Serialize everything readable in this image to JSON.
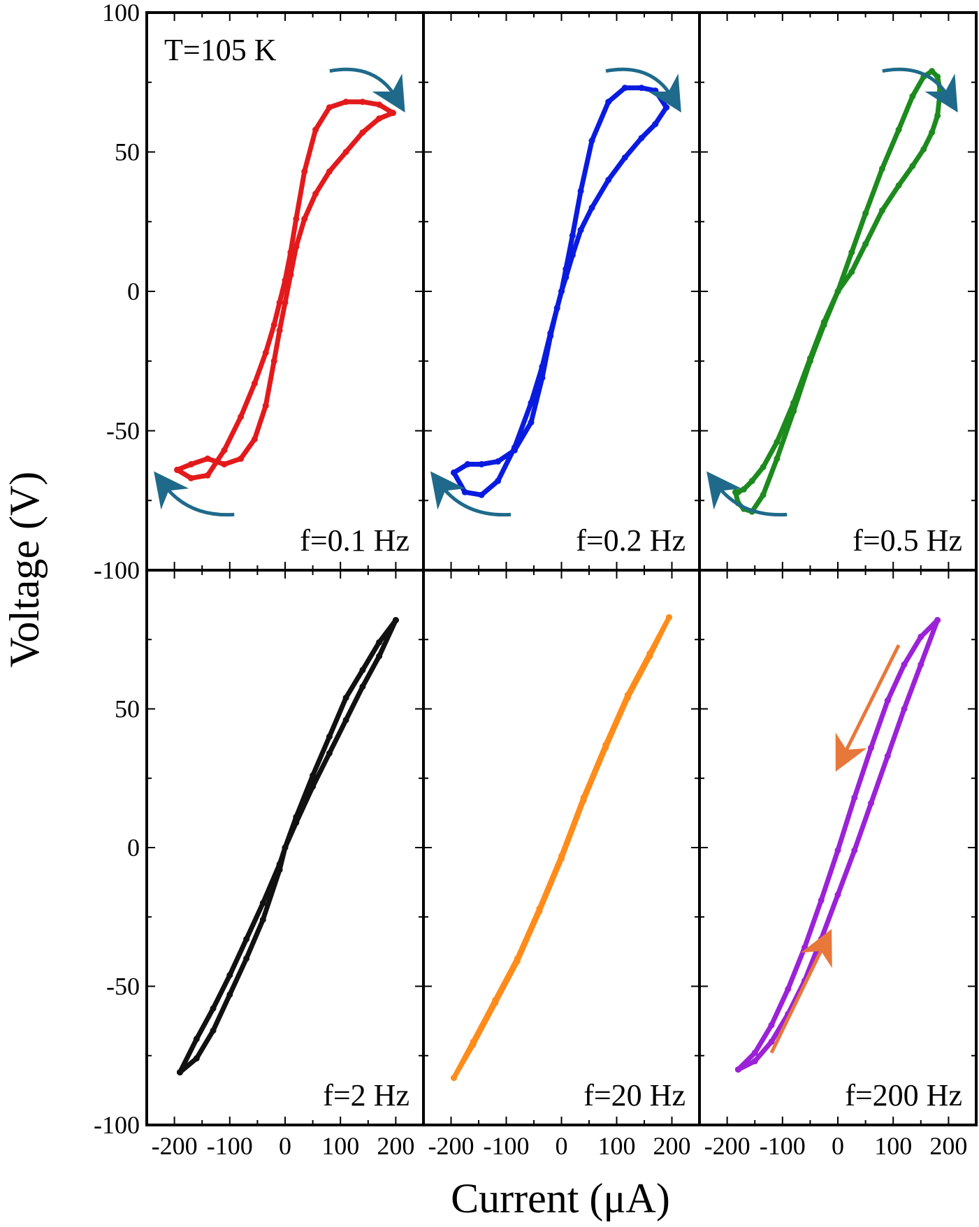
{
  "chart_data": {
    "type": "scatter",
    "layout": "2x3 small multiples",
    "xlabel": "Current (μA)",
    "ylabel": "Voltage (V)",
    "annotation": "T=105 K",
    "xlim": [
      -250,
      250
    ],
    "ylim": [
      -100,
      100
    ],
    "x_ticks": [
      -200,
      -100,
      0,
      100,
      200
    ],
    "x_tick_labels": [
      "-200",
      "-100",
      "0",
      "100",
      "200"
    ],
    "y_ticks": [
      -100,
      -50,
      0,
      50,
      100
    ],
    "y_tick_labels_top": [
      "-100",
      "-50",
      "0",
      "50",
      "100"
    ],
    "y_tick_labels_bottom": [
      "-100",
      "-50",
      "0",
      "50"
    ],
    "panels": [
      {
        "label": "f=0.1 Hz",
        "color": "#e31a1c",
        "arrow_color": "#1f6a8a",
        "arrows": "rotating"
      },
      {
        "label": "f=0.2 Hz",
        "color": "#0a1be0",
        "arrow_color": "#1f6a8a",
        "arrows": "rotating"
      },
      {
        "label": "f=0.5 Hz",
        "color": "#1d8a1d",
        "arrow_color": "#1f6a8a",
        "arrows": "rotating"
      },
      {
        "label": "f=2 Hz",
        "color": "#111111",
        "arrow_color": "",
        "arrows": "none"
      },
      {
        "label": "f=20 Hz",
        "color": "#ff8c1a",
        "arrow_color": "",
        "arrows": "none"
      },
      {
        "label": "f=200 Hz",
        "color": "#9b22d6",
        "arrow_color": "#e8773a",
        "arrows": "straight"
      }
    ],
    "series": [
      {
        "panel": "f=0.1 Hz",
        "branch_up": {
          "x": [
            -195,
            -170,
            -140,
            -110,
            -80,
            -55,
            -35,
            -20,
            -10,
            0,
            10,
            20,
            35,
            55,
            80,
            110,
            140,
            170,
            195
          ],
          "y": [
            -64,
            -67,
            -66,
            -57,
            -45,
            -33,
            -22,
            -12,
            -4,
            4,
            14,
            26,
            43,
            58,
            66,
            68,
            68,
            67,
            64
          ]
        },
        "branch_down": {
          "x": [
            195,
            170,
            140,
            110,
            80,
            55,
            35,
            20,
            10,
            0,
            -10,
            -20,
            -35,
            -55,
            -80,
            -110,
            -140,
            -170,
            -195
          ],
          "y": [
            64,
            62,
            57,
            50,
            43,
            35,
            26,
            16,
            6,
            -4,
            -14,
            -25,
            -41,
            -53,
            -60,
            -62,
            -60,
            -62,
            -64
          ]
        }
      },
      {
        "panel": "f=0.2 Hz",
        "branch_up": {
          "x": [
            -195,
            -175,
            -145,
            -115,
            -85,
            -55,
            -35,
            -20,
            -8,
            0,
            8,
            20,
            35,
            55,
            85,
            115,
            145,
            170,
            190
          ],
          "y": [
            -65,
            -72,
            -73,
            -68,
            -56,
            -40,
            -27,
            -15,
            -6,
            0,
            8,
            20,
            36,
            54,
            68,
            73,
            73,
            72,
            66
          ]
        },
        "branch_down": {
          "x": [
            190,
            170,
            145,
            115,
            85,
            55,
            35,
            20,
            8,
            0,
            -8,
            -20,
            -35,
            -55,
            -85,
            -115,
            -145,
            -170,
            -195
          ],
          "y": [
            66,
            60,
            55,
            48,
            40,
            30,
            22,
            13,
            5,
            0,
            -6,
            -16,
            -31,
            -47,
            -57,
            -61,
            -62,
            -62,
            -65
          ]
        }
      },
      {
        "panel": "f=0.5 Hz",
        "branch_up": {
          "x": [
            -185,
            -180,
            -170,
            -155,
            -135,
            -110,
            -80,
            -50,
            -25,
            0,
            25,
            50,
            80,
            110,
            135,
            155,
            170,
            180,
            185
          ],
          "y": [
            -72,
            -76,
            -78,
            -79,
            -73,
            -60,
            -43,
            -25,
            -12,
            0,
            14,
            28,
            44,
            58,
            70,
            77,
            79,
            77,
            72
          ]
        },
        "branch_down": {
          "x": [
            185,
            180,
            170,
            155,
            135,
            110,
            80,
            50,
            25,
            0,
            -25,
            -50,
            -80,
            -110,
            -135,
            -155,
            -170,
            -180,
            -185
          ],
          "y": [
            72,
            63,
            57,
            51,
            45,
            38,
            29,
            17,
            7,
            0,
            -11,
            -24,
            -40,
            -54,
            -63,
            -68,
            -71,
            -72,
            -72
          ]
        }
      },
      {
        "panel": "f=2 Hz",
        "branch_up": {
          "x": [
            -190,
            -160,
            -130,
            -100,
            -70,
            -40,
            -10,
            0,
            20,
            50,
            80,
            110,
            140,
            170,
            200
          ],
          "y": [
            -81,
            -76,
            -66,
            -53,
            -40,
            -26,
            -8,
            0,
            11,
            26,
            40,
            54,
            64,
            74,
            82
          ]
        },
        "branch_down": {
          "x": [
            200,
            170,
            140,
            110,
            80,
            50,
            20,
            0,
            -10,
            -40,
            -70,
            -100,
            -130,
            -160,
            -190
          ],
          "y": [
            82,
            69,
            58,
            46,
            34,
            22,
            9,
            0,
            -6,
            -20,
            -33,
            -46,
            -58,
            -69,
            -81
          ]
        }
      },
      {
        "panel": "f=20 Hz",
        "branch_up": {
          "x": [
            -195,
            -160,
            -120,
            -80,
            -40,
            0,
            40,
            80,
            120,
            160,
            195
          ],
          "y": [
            -83,
            -70,
            -55,
            -40,
            -22,
            -3,
            18,
            37,
            55,
            70,
            83
          ]
        },
        "branch_down": {
          "x": [
            195,
            160,
            120,
            80,
            40,
            0,
            -40,
            -80,
            -120,
            -160,
            -195
          ],
          "y": [
            83,
            69,
            54,
            36,
            17,
            -4,
            -23,
            -41,
            -56,
            -71,
            -83
          ]
        }
      },
      {
        "panel": "f=200 Hz",
        "branch_up": {
          "x": [
            -180,
            -150,
            -120,
            -90,
            -60,
            -30,
            0,
            30,
            60,
            90,
            120,
            150,
            180
          ],
          "y": [
            -80,
            -74,
            -64,
            -51,
            -36,
            -19,
            -1,
            18,
            36,
            53,
            66,
            76,
            82
          ]
        },
        "branch_down": {
          "x": [
            180,
            150,
            120,
            90,
            60,
            30,
            0,
            -30,
            -60,
            -90,
            -120,
            -150,
            -180
          ],
          "y": [
            82,
            66,
            50,
            33,
            16,
            -1,
            -17,
            -33,
            -48,
            -60,
            -70,
            -77,
            -80
          ]
        }
      }
    ]
  }
}
